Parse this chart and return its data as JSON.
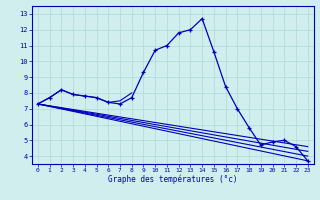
{
  "title": "Graphe des températures (°c)",
  "bg_color": "#d0eeed",
  "grid_color": "#b0d8d8",
  "line_color": "#0000bb",
  "x_hours": [
    0,
    1,
    2,
    3,
    4,
    5,
    6,
    7,
    8,
    9,
    10,
    11,
    12,
    13,
    14,
    15,
    16,
    17,
    18,
    19,
    20,
    21,
    22,
    23
  ],
  "series_main": [
    7.3,
    7.7,
    8.2,
    7.9,
    7.8,
    7.7,
    7.4,
    7.3,
    7.7,
    9.3,
    10.7,
    11.0,
    11.8,
    12.0,
    12.7,
    10.6,
    8.4,
    7.0,
    5.8,
    4.7,
    4.9,
    5.0,
    4.6,
    3.7
  ],
  "trend_lines": [
    [
      7.3,
      3.7
    ],
    [
      7.3,
      4.0
    ],
    [
      7.3,
      4.3
    ],
    [
      7.3,
      4.6
    ]
  ],
  "short_line_x": [
    0,
    1,
    2,
    3,
    4,
    5,
    6,
    7,
    8
  ],
  "short_line_y": [
    7.3,
    7.7,
    8.2,
    7.9,
    7.8,
    7.7,
    7.4,
    7.5,
    8.0
  ],
  "ylim_min": 3.5,
  "ylim_max": 13.5,
  "yticks": [
    4,
    5,
    6,
    7,
    8,
    9,
    10,
    11,
    12,
    13
  ],
  "xlim_min": -0.5,
  "xlim_max": 23.5
}
